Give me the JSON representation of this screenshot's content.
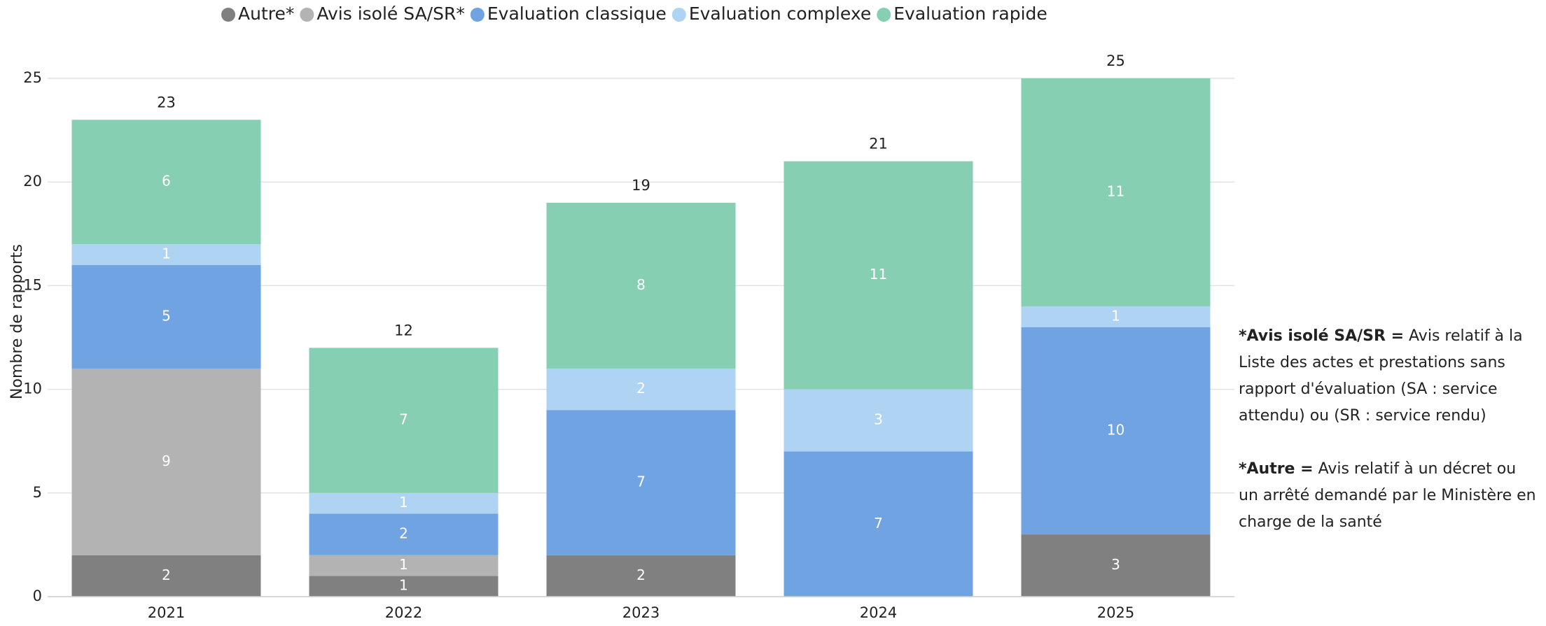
{
  "chart_data": {
    "type": "stacked_bar",
    "categories": [
      "2021",
      "2022",
      "2023",
      "2024",
      "2025"
    ],
    "y_label": "Nombre de rapports",
    "series": [
      {
        "name": "Autre*",
        "color": "#808080",
        "values": [
          2,
          1,
          2,
          0,
          3
        ]
      },
      {
        "name": "Avis isolé SA/SR*",
        "color": "#b3b3b3",
        "values": [
          9,
          1,
          0,
          0,
          0
        ]
      },
      {
        "name": "Evaluation classique",
        "color": "#6fa3e2",
        "values": [
          5,
          2,
          7,
          7,
          10
        ]
      },
      {
        "name": "Evaluation complexe",
        "color": "#aed3f3",
        "values": [
          1,
          1,
          2,
          3,
          1
        ]
      },
      {
        "name": "Evaluation rapide",
        "color": "#86cfb3",
        "values": [
          6,
          7,
          8,
          11,
          11
        ]
      }
    ],
    "totals": [
      23,
      12,
      19,
      21,
      25
    ],
    "ylim": [
      0,
      25
    ],
    "yticks": [
      0,
      5,
      10,
      15,
      20,
      25
    ],
    "grid": true,
    "legend": "top",
    "notes": [
      {
        "term": "*Avis isolé SA/SR =",
        "text": "Avis relatif à la Liste des actes et prestations sans rapport d'évaluation (SA : service attendu) ou (SR : service rendu)"
      },
      {
        "term": "*Autre =",
        "text": "Avis relatif à un décret ou un arrêté demandé par le Ministère en charge de la santé"
      }
    ]
  }
}
